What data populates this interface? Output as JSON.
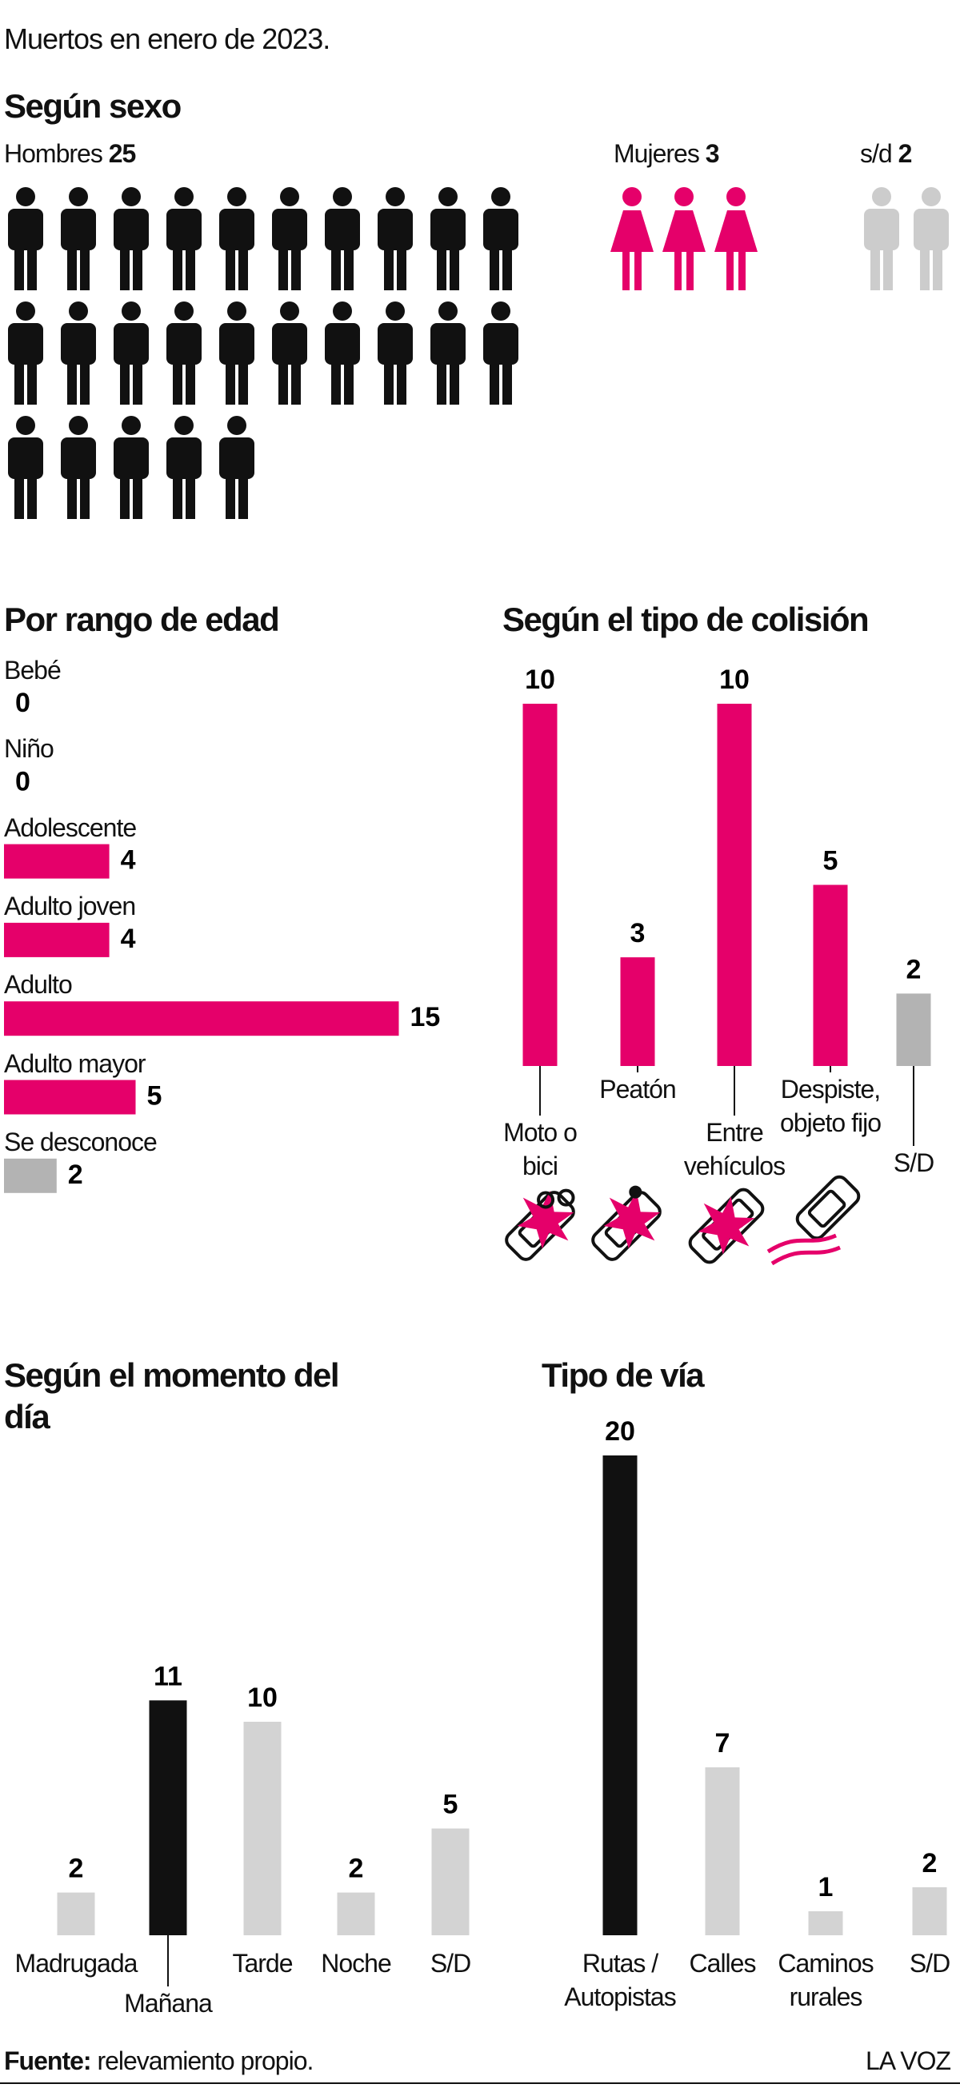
{
  "title": "Muertos en enero de 2023.",
  "chart_data": [
    {
      "type": "pictogram",
      "title": "Según sexo",
      "categories": [
        "Hombres",
        "Mujeres",
        "s/d"
      ],
      "values": [
        25,
        3,
        2
      ],
      "colors": [
        "#111111",
        "#e5006a",
        "#cccccc"
      ]
    },
    {
      "type": "hbar",
      "title": "Por rango de edad",
      "categories": [
        "Bebé",
        "Niño",
        "Adolescente",
        "Adulto joven",
        "Adulto",
        "Adulto mayor",
        "Se desconoce"
      ],
      "values": [
        0,
        0,
        4,
        4,
        15,
        5,
        2
      ],
      "colors": [
        "#e5006a",
        "#e5006a",
        "#e5006a",
        "#e5006a",
        "#e5006a",
        "#e5006a",
        "#b3b3b3"
      ]
    },
    {
      "type": "bar",
      "title": "Según el tipo de colisión",
      "categories": [
        "Moto o bici",
        "Peatón",
        "Entre vehículos",
        "Despiste, objeto fijo",
        "S/D"
      ],
      "values": [
        10,
        3,
        10,
        5,
        2
      ],
      "colors": [
        "#e5006a",
        "#e5006a",
        "#e5006a",
        "#e5006a",
        "#b3b3b3"
      ]
    },
    {
      "type": "bar",
      "title": "Según el momento del día",
      "categories": [
        "Madrugada",
        "Mañana",
        "Tarde",
        "Noche",
        "S/D"
      ],
      "values": [
        2,
        11,
        10,
        2,
        5
      ],
      "colors": [
        "#d3d3d3",
        "#111111",
        "#d3d3d3",
        "#d3d3d3",
        "#d3d3d3"
      ]
    },
    {
      "type": "bar",
      "title": "Tipo de vía",
      "categories": [
        "Rutas / Autopistas",
        "Calles",
        "Caminos rurales",
        "S/D"
      ],
      "values": [
        20,
        7,
        1,
        2
      ],
      "colors": [
        "#111111",
        "#d3d3d3",
        "#d3d3d3",
        "#d3d3d3"
      ]
    }
  ],
  "source": {
    "label": "Fuente:",
    "text": "relevamiento propio."
  },
  "brand": "LA VOZ"
}
